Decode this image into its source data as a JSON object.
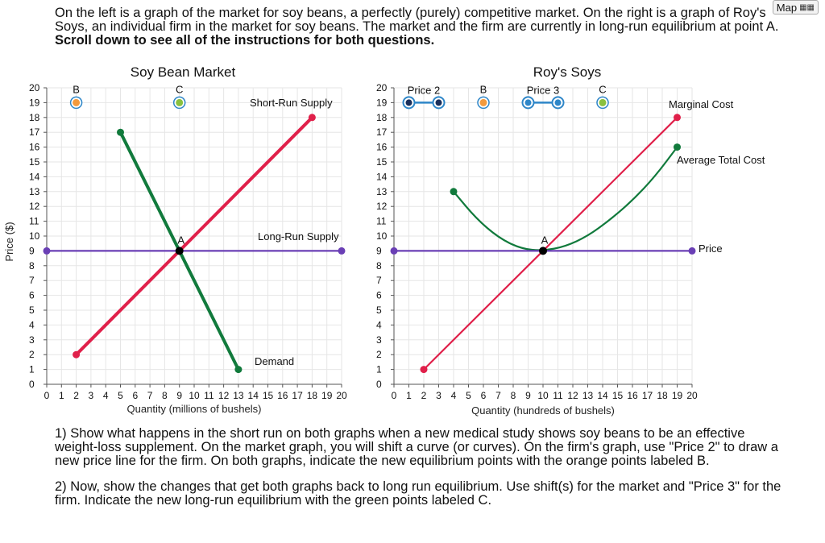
{
  "map_button": {
    "label": "Map",
    "icon": "grid-icon"
  },
  "intro": {
    "text": "On the left is a graph of the market for soy beans, a perfectly (purely) competitive market. On the right is a graph of Roy's Soys, an individual firm in the market for soy beans. The market and the firm are currently in long-run equilibrium at point A.",
    "bold": "Scroll down to see all of the instructions for both questions."
  },
  "instructions": {
    "q1": "1) Show what happens in the short run on both graphs when a new medical study shows soy beans to be an effective weight-loss supplement. On the market graph, you will shift a curve (or curves). On the firm's graph, use \"Price 2\" to draw a new price line for the firm. On both graphs, indicate the new equilibrium points with the orange points labeled B.",
    "q2": "2) Now, show the changes that get both graphs back to long run equilibrium. Use shift(s) for the market and \"Price 3\" for the firm. Indicate the new long-run equilibrium with the green points labeled C."
  },
  "shared_ylabel": "Price ($)",
  "colors": {
    "supply": "#e0204a",
    "demand": "#117a3c",
    "price_line": "#6a3fb5",
    "point_b": "#f39a3c",
    "point_c": "#8ac13f",
    "tool_line": "#2e86c8",
    "grid": "#e6e6e6"
  },
  "chart_data": [
    {
      "type": "line",
      "title": "Soy Bean Market",
      "xlabel": "Quantity (millions of bushels)",
      "ylabel": "Price ($)",
      "xlim": [
        0,
        20
      ],
      "ylim": [
        0,
        20
      ],
      "xticks": [
        0,
        1,
        2,
        3,
        4,
        5,
        6,
        7,
        8,
        9,
        10,
        11,
        12,
        13,
        14,
        15,
        16,
        17,
        18,
        19,
        20
      ],
      "yticks": [
        0,
        1,
        2,
        3,
        4,
        5,
        6,
        7,
        8,
        9,
        10,
        11,
        12,
        13,
        14,
        15,
        16,
        17,
        18,
        19,
        20
      ],
      "series": [
        {
          "name": "Short-Run Supply",
          "color": "#e0204a",
          "points": [
            [
              2,
              2
            ],
            [
              18,
              18
            ]
          ]
        },
        {
          "name": "Demand",
          "color": "#117a3c",
          "points": [
            [
              5,
              17
            ],
            [
              13,
              1
            ]
          ]
        },
        {
          "name": "Long-Run Supply",
          "color": "#6a3fb5",
          "points": [
            [
              0,
              9
            ],
            [
              20,
              9
            ]
          ]
        }
      ],
      "points": [
        {
          "label": "A",
          "x": 9,
          "y": 9,
          "color": "#000000"
        },
        {
          "label": "B",
          "x": 2,
          "y": 19,
          "color": "#f39a3c",
          "ring": true
        },
        {
          "label": "C",
          "x": 9,
          "y": 19,
          "color": "#8ac13f",
          "ring": true
        }
      ],
      "tools": []
    },
    {
      "type": "line",
      "title": "Roy's Soys",
      "xlabel": "Quantity (hundreds of bushels)",
      "ylabel": "",
      "xlim": [
        0,
        20
      ],
      "ylim": [
        0,
        20
      ],
      "xticks": [
        0,
        1,
        2,
        3,
        4,
        5,
        6,
        7,
        8,
        9,
        10,
        11,
        12,
        13,
        14,
        15,
        16,
        17,
        18,
        19,
        20
      ],
      "yticks": [
        0,
        1,
        2,
        3,
        4,
        5,
        6,
        7,
        8,
        9,
        10,
        11,
        12,
        13,
        14,
        15,
        16,
        17,
        18,
        19,
        20
      ],
      "series": [
        {
          "name": "Marginal Cost",
          "color": "#e0204a",
          "points": [
            [
              2,
              1
            ],
            [
              19,
              18
            ]
          ]
        },
        {
          "name": "Average Total Cost",
          "color": "#117a3c",
          "curve": true,
          "points": [
            [
              4,
              13
            ],
            [
              5.5,
              11.2
            ],
            [
              7,
              9.9
            ],
            [
              8.5,
              9.15
            ],
            [
              10,
              9
            ],
            [
              11.5,
              9.3
            ],
            [
              13,
              10
            ],
            [
              14.5,
              11.1
            ],
            [
              16,
              12.4
            ],
            [
              17.5,
              14
            ],
            [
              19,
              16
            ]
          ]
        },
        {
          "name": "Price",
          "color": "#6a3fb5",
          "points": [
            [
              0,
              9
            ],
            [
              20,
              9
            ]
          ]
        }
      ],
      "points": [
        {
          "label": "A",
          "x": 10,
          "y": 9,
          "color": "#000000"
        },
        {
          "label": "B",
          "x": 6,
          "y": 19,
          "color": "#f39a3c",
          "ring": true
        },
        {
          "label": "C",
          "x": 14,
          "y": 19,
          "color": "#8ac13f",
          "ring": true
        }
      ],
      "tools": [
        {
          "label": "Price 2",
          "x1": 1,
          "x2": 3,
          "y": 19,
          "dark": true
        },
        {
          "label": "Price 3",
          "x1": 9,
          "x2": 11,
          "y": 19,
          "dark": false
        }
      ]
    }
  ]
}
